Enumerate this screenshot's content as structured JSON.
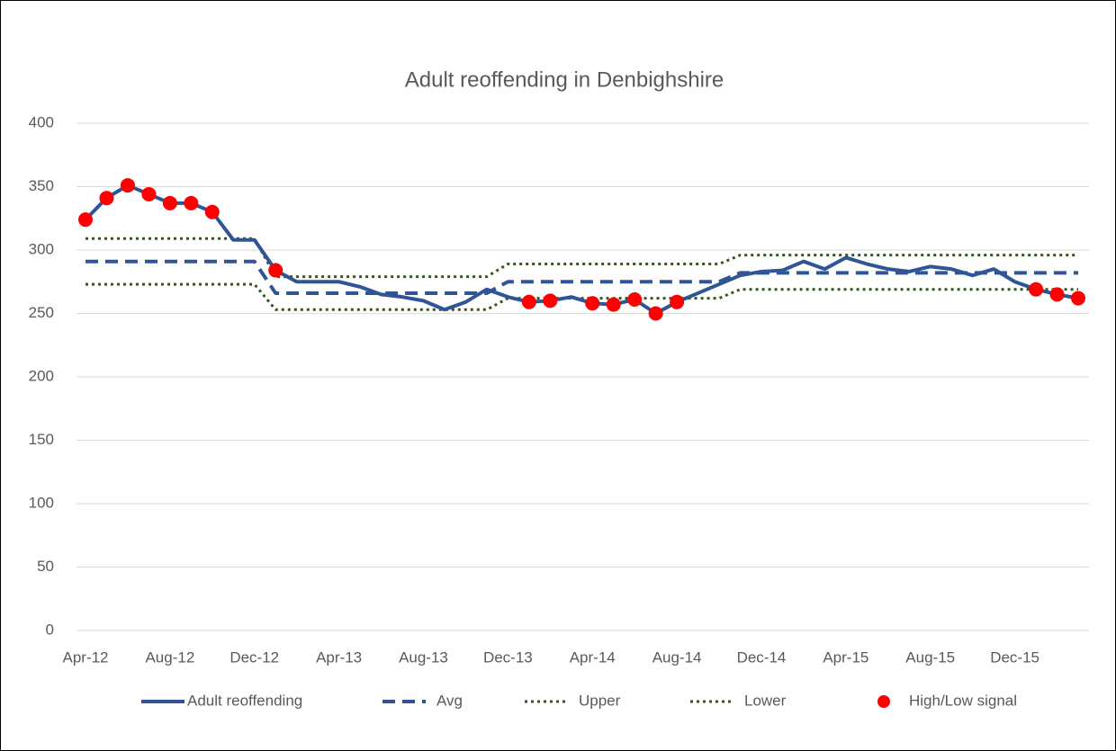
{
  "chart_data": {
    "type": "line",
    "title": "Adult reoffending in Denbighshire",
    "categories": [
      "Apr-12",
      null,
      null,
      null,
      "Aug-12",
      null,
      null,
      null,
      "Dec-12",
      null,
      null,
      null,
      "Apr-13",
      null,
      null,
      null,
      "Aug-13",
      null,
      null,
      null,
      "Dec-13",
      null,
      null,
      null,
      "Apr-14",
      null,
      null,
      null,
      "Aug-14",
      null,
      null,
      null,
      "Dec-14",
      null,
      null,
      null,
      "Apr-15",
      null,
      null,
      null,
      "Aug-15",
      null,
      null,
      null,
      "Dec-15",
      null,
      null,
      null
    ],
    "series": [
      {
        "name": "Adult reoffending",
        "color": "#2f5597",
        "line_style": "solid",
        "values": [
          324,
          341,
          351,
          344,
          337,
          337,
          330,
          308,
          308,
          284,
          275,
          275,
          275,
          271,
          265,
          263,
          260,
          253,
          259,
          269,
          263,
          259,
          260,
          263,
          258,
          257,
          261,
          250,
          259,
          266,
          273,
          280,
          283,
          284,
          291,
          285,
          294,
          289,
          285,
          283,
          287,
          285,
          280,
          285,
          275,
          269,
          265,
          262
        ]
      },
      {
        "name": "Avg",
        "color": "#2f5597",
        "line_style": "dashed",
        "values": [
          291,
          291,
          291,
          291,
          291,
          291,
          291,
          291,
          291,
          266,
          266,
          266,
          266,
          266,
          266,
          266,
          266,
          266,
          266,
          266,
          275,
          275,
          275,
          275,
          275,
          275,
          275,
          275,
          275,
          275,
          275,
          282,
          282,
          282,
          282,
          282,
          282,
          282,
          282,
          282,
          282,
          282,
          282,
          282,
          282,
          282,
          282,
          282
        ]
      },
      {
        "name": "Upper",
        "color": "#375623",
        "line_style": "dotted",
        "values": [
          309,
          309,
          309,
          309,
          309,
          309,
          309,
          309,
          309,
          279,
          279,
          279,
          279,
          279,
          279,
          279,
          279,
          279,
          279,
          279,
          289,
          289,
          289,
          289,
          289,
          289,
          289,
          289,
          289,
          289,
          289,
          296,
          296,
          296,
          296,
          296,
          296,
          296,
          296,
          296,
          296,
          296,
          296,
          296,
          296,
          296,
          296,
          296
        ]
      },
      {
        "name": "Lower",
        "color": "#375623",
        "line_style": "dotted",
        "values": [
          273,
          273,
          273,
          273,
          273,
          273,
          273,
          273,
          273,
          253,
          253,
          253,
          253,
          253,
          253,
          253,
          253,
          253,
          253,
          253,
          262,
          262,
          262,
          262,
          262,
          262,
          262,
          262,
          262,
          262,
          262,
          269,
          269,
          269,
          269,
          269,
          269,
          269,
          269,
          269,
          269,
          269,
          269,
          269,
          269,
          269,
          269,
          269
        ]
      },
      {
        "name": "High/Low signal",
        "color": "#ff0000",
        "line_style": "marker",
        "values": [
          324,
          341,
          351,
          344,
          337,
          337,
          330,
          null,
          null,
          284,
          null,
          null,
          null,
          null,
          null,
          null,
          null,
          null,
          null,
          null,
          null,
          259,
          260,
          null,
          258,
          257,
          261,
          250,
          259,
          null,
          null,
          null,
          null,
          null,
          null,
          null,
          null,
          null,
          null,
          null,
          null,
          null,
          null,
          null,
          null,
          269,
          265,
          262
        ]
      }
    ],
    "ylim": [
      0,
      400
    ],
    "yticks": [
      0,
      50,
      100,
      150,
      200,
      250,
      300,
      350,
      400
    ],
    "grid": true,
    "legend": "bottom"
  }
}
